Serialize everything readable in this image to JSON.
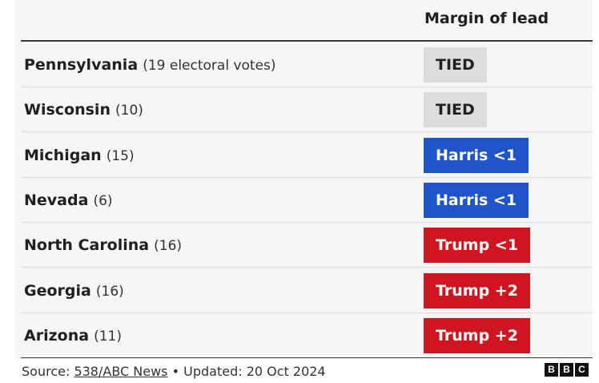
{
  "header": {
    "column": "Margin of lead"
  },
  "table": {
    "rows": [
      {
        "state": "Pennsylvania",
        "votes": "(19 electoral votes)",
        "lead": "TIED",
        "color": "#dcdcdc",
        "text_color": "#202020"
      },
      {
        "state": "Wisconsin",
        "votes": "(10)",
        "lead": "TIED",
        "color": "#dcdcdc",
        "text_color": "#202020"
      },
      {
        "state": "Michigan",
        "votes": "(15)",
        "lead": "Harris <1",
        "color": "#1f55c9",
        "text_color": "#ffffff"
      },
      {
        "state": "Nevada",
        "votes": "(6)",
        "lead": "Harris <1",
        "color": "#1f55c9",
        "text_color": "#ffffff"
      },
      {
        "state": "North Carolina",
        "votes": "(16)",
        "lead": "Trump <1",
        "color": "#cf1620",
        "text_color": "#ffffff"
      },
      {
        "state": "Georgia",
        "votes": "(16)",
        "lead": "Trump +2",
        "color": "#cf1620",
        "text_color": "#ffffff"
      },
      {
        "state": "Arizona",
        "votes": "(11)",
        "lead": "Trump +2",
        "color": "#cf1620",
        "text_color": "#ffffff"
      }
    ]
  },
  "footer": {
    "source_label": "Source:",
    "source_link": "538/ABC News",
    "updated": "• Updated: 20 Oct 2024",
    "logo": [
      "B",
      "B",
      "C"
    ]
  }
}
